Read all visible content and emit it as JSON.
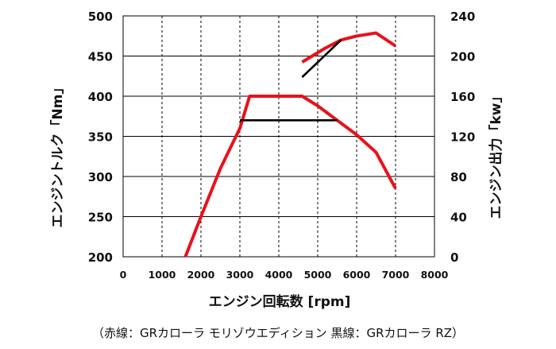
{
  "chart_data": {
    "type": "line",
    "xlabel": "エンジン回転数 [rpm]",
    "ylabel_left": "エンジントルク「Nm」",
    "ylabel_right": "エンジン出力「kw」",
    "caption": "（赤線：GRカローラ モリゾウエディション 黒線：GRカローラ RZ）",
    "xlim": [
      0,
      8000
    ],
    "ylim_left": [
      200,
      500
    ],
    "ylim_right": [
      0,
      240
    ],
    "x_ticks": [
      "0",
      "1000",
      "2000",
      "3000",
      "4000",
      "5000",
      "6000",
      "7000",
      "8000"
    ],
    "y_left_ticks": [
      "200",
      "250",
      "300",
      "350",
      "400",
      "450",
      "500"
    ],
    "y_right_ticks": [
      "0",
      "40",
      "80",
      "120",
      "160",
      "200",
      "240"
    ],
    "grid": true,
    "colors": {
      "red": "#e8121b",
      "black": "#000000"
    },
    "series": [
      {
        "axis": "left",
        "color": "red",
        "x": [
          1600,
          2000,
          2500,
          3000,
          3250,
          4600,
          5000,
          5500,
          6000,
          6500,
          7000
        ],
        "y": [
          200,
          250,
          310,
          360,
          400,
          400,
          388,
          370,
          352,
          330,
          285
        ]
      },
      {
        "axis": "left",
        "color": "black",
        "x": [
          3000,
          5500
        ],
        "y": [
          370,
          370
        ]
      },
      {
        "axis": "right",
        "color": "red",
        "x": [
          4600,
          5200,
          5600,
          6000,
          6500,
          7000
        ],
        "y": [
          194,
          208,
          216,
          220,
          223,
          210
        ]
      },
      {
        "axis": "right",
        "color": "black",
        "x": [
          4600,
          5600
        ],
        "y": [
          179,
          216
        ]
      }
    ]
  }
}
